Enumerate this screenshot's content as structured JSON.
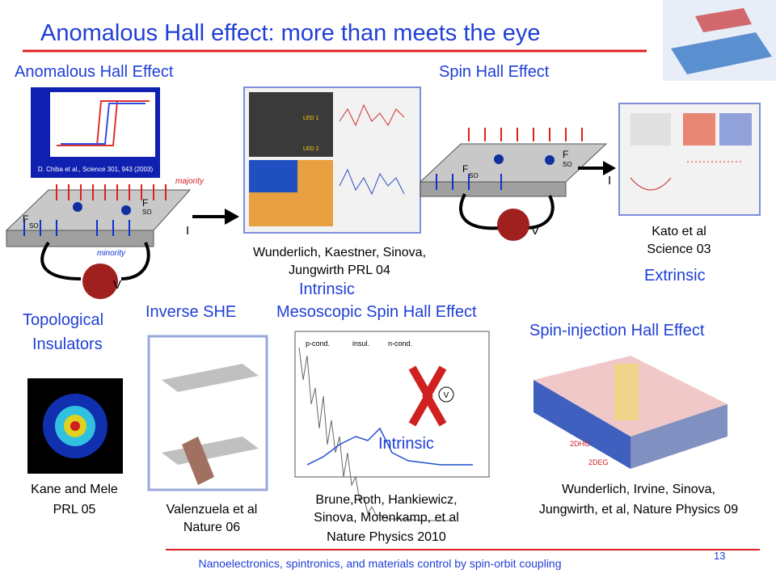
{
  "header": {
    "title": "Anomalous Hall effect: more than meets the eye"
  },
  "headings": {
    "anomalous_hall": "Anomalous Hall Effect",
    "spin_hall": "Spin Hall Effect",
    "topological": [
      "Topological",
      "Insulators"
    ],
    "inverse_she": "Inverse SHE",
    "mesoscopic": "Mesoscopic Spin Hall Effect",
    "spin_injection": "Spin-injection Hall Effect"
  },
  "tags": {
    "intrinsic": "Intrinsic",
    "extrinsic": "Extrinsic"
  },
  "diagram_labels": {
    "majority": "majority",
    "minority": "minority",
    "voltage": "V",
    "current": "I",
    "force": "F",
    "force_sub": "SO"
  },
  "figure_texts": {
    "chiba": "D. Chiba et al., Science 301, 943 (2003)",
    "led1": "LED 1",
    "led2": "LED 2",
    "p_cond": "p-cond.",
    "insul": "insul.",
    "n_cond": "n-cond.",
    "hdg": "2DHG",
    "edg": "2DEG"
  },
  "citations": {
    "wunderlich04": [
      "Wunderlich, Kaestner, Sinova,",
      "Jungwirth PRL 04"
    ],
    "kato": [
      "Kato et al",
      "Science 03"
    ],
    "kane": [
      "Kane and Mele",
      "PRL  05"
    ],
    "valenzuela": [
      "Valenzuela et al",
      "Nature 06"
    ],
    "brune": [
      "Brune,Roth, Hankiewicz,",
      "Sinova, Molenkamp, et al",
      "Nature Physics 2010"
    ],
    "wunderlich09": [
      "Wunderlich, Irvine, Sinova,",
      "Jungwirth, et al, Nature Physics 09"
    ]
  },
  "footer": {
    "text": "Nanoelectronics, spintronics, and materials control by spin-orbit coupling",
    "page": "13"
  }
}
